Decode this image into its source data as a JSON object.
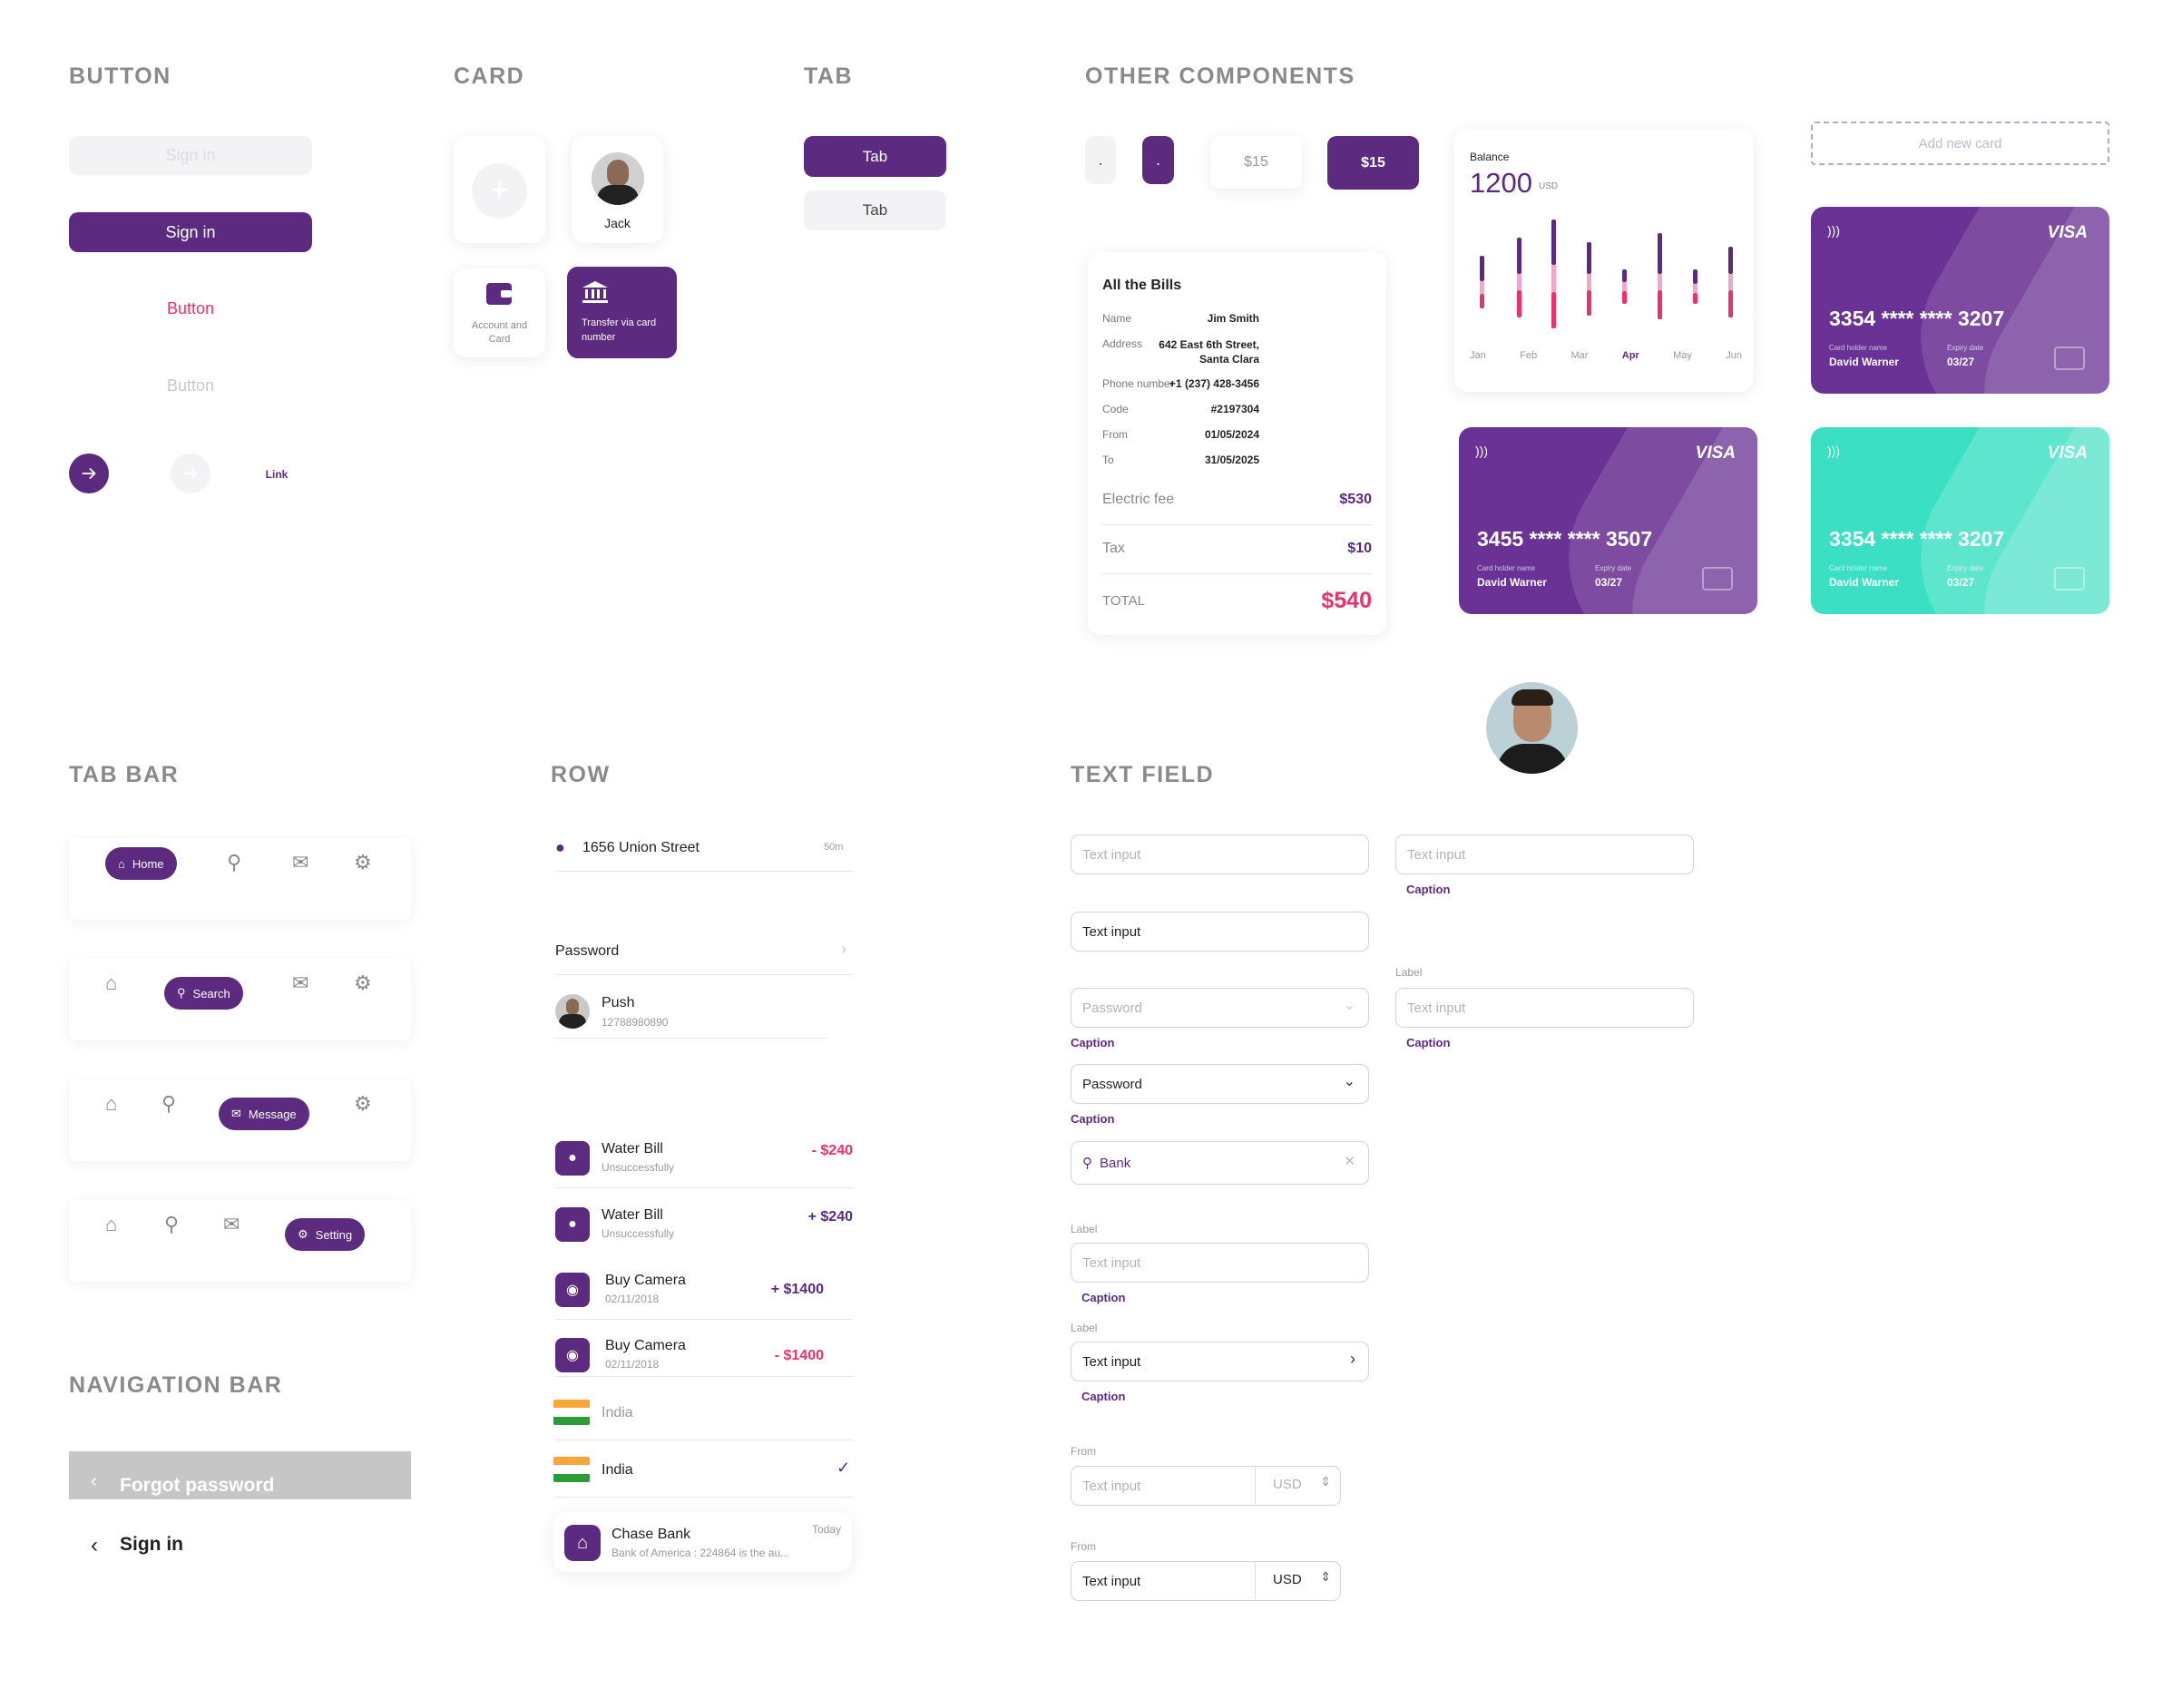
{
  "sections": {
    "button": "BUTTON",
    "card": "CARD",
    "tab": "TAB",
    "other": "OTHER COMPONENTS",
    "tabbar": "TAB BAR",
    "row": "ROW",
    "textfield": "TEXT FIELD",
    "navbar": "NAVIGATION BAR"
  },
  "buttons": {
    "disabled": "Sign in",
    "primary": "Sign in",
    "text_pink": "Button",
    "text_gray": "Button",
    "link": "Link"
  },
  "cards": {
    "contact_name": "Jack",
    "account_label": "Account and Card",
    "transfer_label": "Transfer via card number"
  },
  "tabs": {
    "active": "Tab",
    "inactive": "Tab"
  },
  "other": {
    "dot1": ".",
    "dot2": ".",
    "price1": "$15",
    "price2": "$15"
  },
  "balance": {
    "label": "Balance",
    "amount": "1200",
    "currency": "USD",
    "months": [
      "Jan",
      "Feb",
      "Mar",
      "Apr",
      "May",
      "Jun"
    ],
    "active_month": "Apr"
  },
  "add_card": "Add new card",
  "credit_cards": [
    {
      "brand": "VISA",
      "number": "3354 **** **** 3207",
      "holder_label": "Card holder name",
      "holder": "David Warner",
      "expiry_label": "Expiry date",
      "expiry": "03/27",
      "color": "#6a3294"
    },
    {
      "brand": "VISA",
      "number": "3455 **** **** 3507",
      "holder_label": "Card holder name",
      "holder": "David Warner",
      "expiry_label": "Expiry date",
      "expiry": "03/27",
      "color": "#6a3294"
    },
    {
      "brand": "VISA",
      "number": "3354 **** **** 3207",
      "holder_label": "Card holder name",
      "holder": "David Warner",
      "expiry_label": "Expiry date",
      "expiry": "03/27",
      "color": "#3be0c4"
    }
  ],
  "bills": {
    "title": "All the Bills",
    "rows": [
      {
        "k": "Name",
        "v": "Jim Smith"
      },
      {
        "k": "Address",
        "v": "642 East 6th Street, Santa Clara"
      },
      {
        "k": "Phone number",
        "v": "+1 (237) 428-3456"
      },
      {
        "k": "Code",
        "v": "#2197304"
      },
      {
        "k": "From",
        "v": "01/05/2024"
      },
      {
        "k": "To",
        "v": "31/05/2025"
      }
    ],
    "electric_label": "Electric fee",
    "electric": "$530",
    "tax_label": "Tax",
    "tax": "$10",
    "total_label": "TOTAL",
    "total": "$540"
  },
  "tabbar": [
    {
      "active": "Home"
    },
    {
      "active": "Search"
    },
    {
      "active": "Message"
    },
    {
      "active": "Setting"
    }
  ],
  "navbar": {
    "forgot": "Forgot password",
    "signin": "Sign in"
  },
  "rows": {
    "location": "1656 Union Street",
    "distance": "50m",
    "password": "Password",
    "push_name": "Push",
    "push_sub": "12788980890",
    "transactions": [
      {
        "title": "Water Bill",
        "sub": "Unsuccessfully",
        "amount": "- $240",
        "icon": "drop",
        "color": "#e8336d"
      },
      {
        "title": "Water Bill",
        "sub": "Unsuccessfully",
        "amount": "+ $240",
        "icon": "drop",
        "color": "#5c2a7e"
      },
      {
        "title": "Buy Camera",
        "sub": "02/11/2018",
        "amount": "+ $1400",
        "icon": "camera",
        "color": "#5c2a7e"
      },
      {
        "title": "Buy Camera",
        "sub": "02/11/2018",
        "amount": "- $1400",
        "icon": "camera",
        "color": "#e8336d"
      }
    ],
    "country1": "India",
    "country2": "India",
    "bank_title": "Chase Bank",
    "bank_time": "Today",
    "bank_sub": "Bank of America : 224864 is the au..."
  },
  "textfields": {
    "placeholder": "Text input",
    "value": "Text input",
    "caption": "Caption",
    "label": "Label",
    "password_ph": "Password",
    "password": "Password",
    "search": "Bank",
    "from": "From",
    "usd": "USD"
  }
}
